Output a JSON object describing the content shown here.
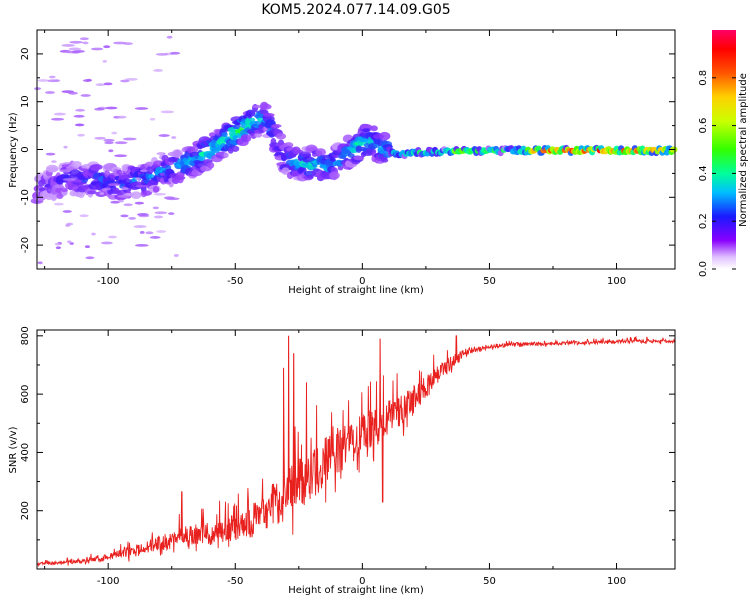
{
  "title": "KOM5.2024.077.14.09.G05",
  "colors": {
    "snr_line": "#e8201e",
    "axis": "#000000"
  },
  "chart_data": [
    {
      "type": "heatmap",
      "name_hint": "spectrogram",
      "xlabel": "Height of straight line (km)",
      "ylabel": "Frequency (Hz)",
      "xlim": [
        -128,
        123
      ],
      "ylim": [
        -25,
        25
      ],
      "xticks": [
        -100,
        -50,
        0,
        50,
        100
      ],
      "yticks": [
        -20,
        -10,
        0,
        10,
        20
      ],
      "colorbar": {
        "label": "Normalized spectral amplitude",
        "range": [
          0,
          1
        ],
        "ticks": [
          0.0,
          0.2,
          0.4,
          0.6,
          0.8
        ],
        "tick_labels": [
          "0.0",
          "0.2",
          "0.4",
          "0.6",
          "0.8"
        ],
        "colormap": "gist_rainbow (purple to red)"
      },
      "ridge": {
        "x": [
          -128,
          -115,
          -105,
          -95,
          -85,
          -75,
          -65,
          -55,
          -48,
          -42,
          -38,
          -34,
          -30,
          -26,
          -20,
          -14,
          -8,
          -4,
          0,
          4,
          8,
          14,
          20,
          30,
          40,
          50,
          60,
          70,
          80,
          90,
          100,
          110,
          123
        ],
        "y": [
          -8,
          -6,
          -6.5,
          -7,
          -6,
          -4,
          -2,
          1.5,
          4,
          6,
          6.5,
          2,
          -2,
          -3,
          -3,
          -3.5,
          -2,
          0,
          1.5,
          1.5,
          0,
          -1,
          -0.7,
          -0.5,
          -0.3,
          -0.3,
          -0.2,
          -0.2,
          -0.2,
          -0.2,
          -0.2,
          -0.2,
          -0.2
        ],
        "amplitude": [
          0.12,
          0.2,
          0.25,
          0.25,
          0.28,
          0.3,
          0.35,
          0.4,
          0.45,
          0.4,
          0.3,
          0.25,
          0.3,
          0.3,
          0.35,
          0.35,
          0.3,
          0.35,
          0.4,
          0.38,
          0.32,
          0.38,
          0.42,
          0.45,
          0.55,
          0.5,
          0.5,
          0.85,
          0.9,
          0.95,
          0.9,
          0.88,
          0.85
        ]
      }
    },
    {
      "type": "line",
      "name_hint": "snr",
      "xlabel": "Height of straight line (km)",
      "ylabel": "SNR (v/v)",
      "xlim": [
        -128,
        123
      ],
      "ylim": [
        0,
        820
      ],
      "xticks": [
        -100,
        -50,
        0,
        50,
        100
      ],
      "yticks": [
        200,
        400,
        600,
        800
      ],
      "envelope": {
        "x": [
          -128,
          -110,
          -100,
          -90,
          -80,
          -70,
          -60,
          -50,
          -40,
          -30,
          -20,
          -10,
          0,
          10,
          20,
          30,
          40,
          50,
          60,
          70,
          80,
          90,
          100,
          110,
          123
        ],
        "base": [
          15,
          25,
          40,
          55,
          80,
          100,
          110,
          130,
          160,
          230,
          300,
          380,
          440,
          500,
          560,
          660,
          740,
          760,
          770,
          770,
          772,
          775,
          778,
          780,
          780
        ],
        "amp": [
          10,
          15,
          25,
          40,
          55,
          70,
          80,
          90,
          130,
          180,
          180,
          160,
          140,
          120,
          100,
          60,
          25,
          15,
          12,
          12,
          12,
          12,
          12,
          12,
          12
        ]
      },
      "peaks": [
        {
          "x": -29,
          "y": 800
        },
        {
          "x": -27,
          "y": 740
        },
        {
          "x": -31,
          "y": 690
        },
        {
          "x": -22,
          "y": 640
        },
        {
          "x": 7,
          "y": 790
        },
        {
          "x": 8,
          "y": 230
        },
        {
          "x": -71,
          "y": 265
        },
        {
          "x": 37,
          "y": 800
        }
      ]
    }
  ]
}
